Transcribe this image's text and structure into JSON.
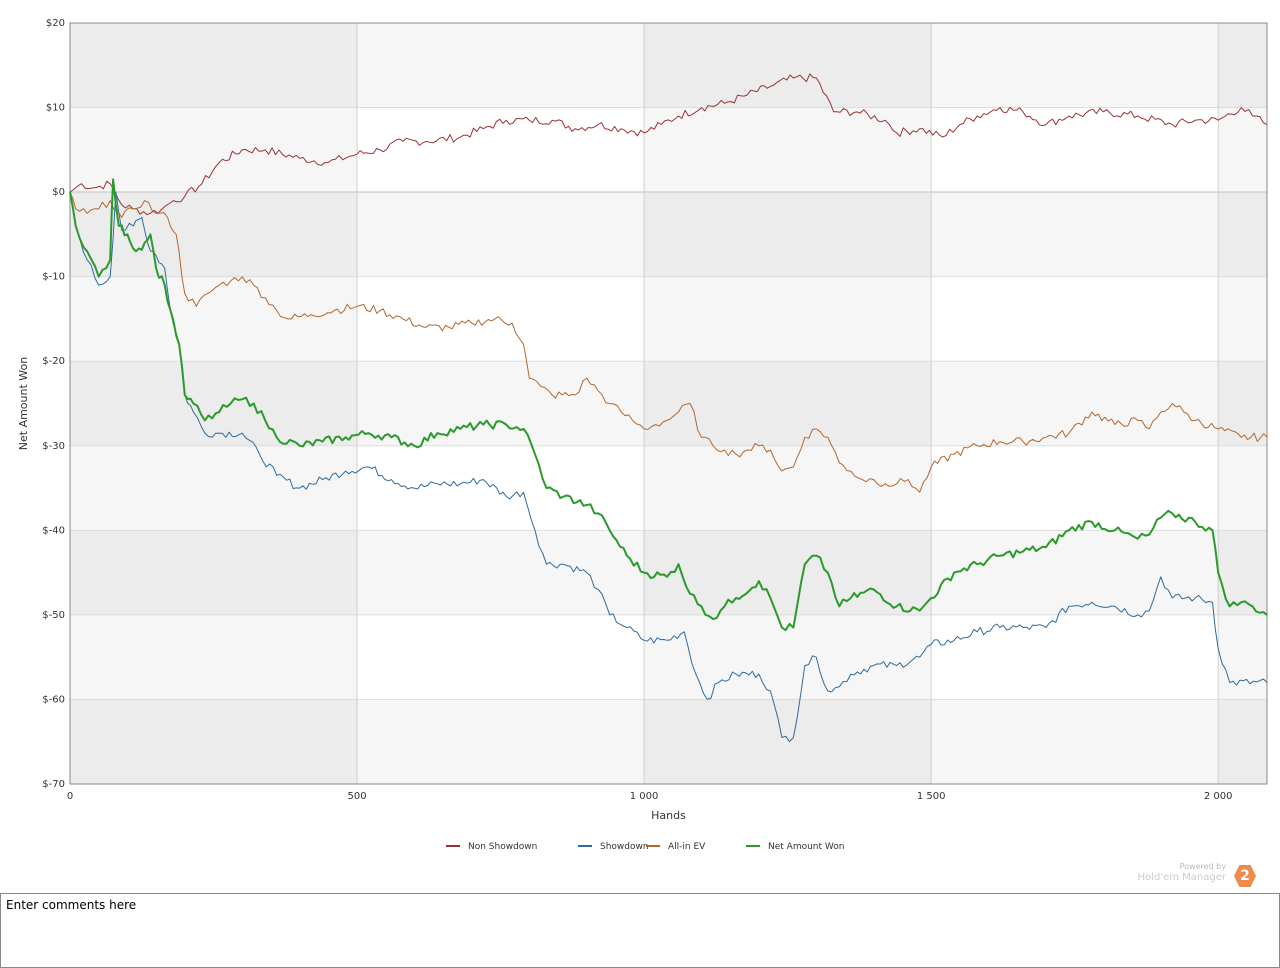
{
  "chart_data": {
    "type": "line",
    "title": "",
    "xlabel": "Hands",
    "ylabel": "Net Amount Won",
    "xlim": [
      0,
      2085
    ],
    "ylim": [
      -70,
      20
    ],
    "x_ticks": [
      0,
      500,
      1000,
      1500,
      2000
    ],
    "x_tick_labels": [
      "0",
      "500",
      "1 000",
      "1 500",
      "2 000"
    ],
    "y_ticks": [
      20,
      10,
      0,
      -10,
      -20,
      -30,
      -40,
      -50,
      -60,
      -70
    ],
    "y_tick_labels": [
      "$20",
      "$10",
      "$0",
      "$-10",
      "$-20",
      "$-30",
      "$-40",
      "$-50",
      "$-60",
      "$-70"
    ],
    "grid": true,
    "legend_position": "bottom-center",
    "series": [
      {
        "name": "Non Showdown",
        "color": "#9b3236",
        "stroke": 1,
        "points": [
          [
            0,
            0
          ],
          [
            20,
            1
          ],
          [
            40,
            0.5
          ],
          [
            70,
            1
          ],
          [
            90,
            -1.5
          ],
          [
            110,
            -2
          ],
          [
            140,
            -2.5
          ],
          [
            160,
            -2
          ],
          [
            180,
            -1
          ],
          [
            200,
            -0.5
          ],
          [
            230,
            1
          ],
          [
            260,
            3.5
          ],
          [
            300,
            5
          ],
          [
            340,
            5
          ],
          [
            400,
            4
          ],
          [
            450,
            3.5
          ],
          [
            500,
            4.5
          ],
          [
            540,
            5
          ],
          [
            580,
            6
          ],
          [
            620,
            6
          ],
          [
            680,
            6.5
          ],
          [
            720,
            7.5
          ],
          [
            760,
            8.5
          ],
          [
            800,
            8.5
          ],
          [
            840,
            8.5
          ],
          [
            880,
            7.5
          ],
          [
            920,
            8
          ],
          [
            960,
            7.5
          ],
          [
            1000,
            7
          ],
          [
            1030,
            8
          ],
          [
            1060,
            9
          ],
          [
            1100,
            10
          ],
          [
            1140,
            10.5
          ],
          [
            1180,
            11.5
          ],
          [
            1220,
            12.5
          ],
          [
            1260,
            13.5
          ],
          [
            1300,
            13.5
          ],
          [
            1330,
            9.5
          ],
          [
            1370,
            9.5
          ],
          [
            1420,
            8.5
          ],
          [
            1440,
            7
          ],
          [
            1480,
            7.5
          ],
          [
            1520,
            6.5
          ],
          [
            1550,
            8
          ],
          [
            1580,
            9
          ],
          [
            1620,
            10
          ],
          [
            1660,
            9.5
          ],
          [
            1700,
            8
          ],
          [
            1740,
            9
          ],
          [
            1800,
            9.5
          ],
          [
            1860,
            9
          ],
          [
            1920,
            8
          ],
          [
            1960,
            8.5
          ],
          [
            2000,
            8.5
          ],
          [
            2040,
            10
          ],
          [
            2060,
            9
          ],
          [
            2085,
            8
          ]
        ]
      },
      {
        "name": "Showdown",
        "color": "#2e6b9e",
        "stroke": 1,
        "points": [
          [
            0,
            0
          ],
          [
            10,
            -4
          ],
          [
            30,
            -8
          ],
          [
            50,
            -11
          ],
          [
            70,
            -10
          ],
          [
            80,
            0
          ],
          [
            90,
            -4.5
          ],
          [
            110,
            -4
          ],
          [
            125,
            -3
          ],
          [
            135,
            -6
          ],
          [
            150,
            -7.5
          ],
          [
            165,
            -9
          ],
          [
            175,
            -14
          ],
          [
            190,
            -18
          ],
          [
            200,
            -24
          ],
          [
            215,
            -26
          ],
          [
            235,
            -28.5
          ],
          [
            260,
            -28.5
          ],
          [
            300,
            -28.5
          ],
          [
            330,
            -31
          ],
          [
            360,
            -33.5
          ],
          [
            400,
            -35
          ],
          [
            440,
            -34
          ],
          [
            480,
            -33
          ],
          [
            520,
            -32.5
          ],
          [
            560,
            -34
          ],
          [
            600,
            -35
          ],
          [
            640,
            -34.5
          ],
          [
            680,
            -34.5
          ],
          [
            720,
            -34
          ],
          [
            760,
            -36
          ],
          [
            790,
            -35.5
          ],
          [
            810,
            -40
          ],
          [
            830,
            -44
          ],
          [
            860,
            -44
          ],
          [
            900,
            -45
          ],
          [
            920,
            -47
          ],
          [
            940,
            -50
          ],
          [
            970,
            -51.5
          ],
          [
            1000,
            -53
          ],
          [
            1040,
            -53
          ],
          [
            1070,
            -52
          ],
          [
            1090,
            -57
          ],
          [
            1110,
            -60
          ],
          [
            1130,
            -58
          ],
          [
            1160,
            -57
          ],
          [
            1200,
            -57
          ],
          [
            1220,
            -59
          ],
          [
            1240,
            -64.5
          ],
          [
            1260,
            -64.5
          ],
          [
            1280,
            -56
          ],
          [
            1300,
            -55
          ],
          [
            1320,
            -59
          ],
          [
            1340,
            -58.5
          ],
          [
            1360,
            -57
          ],
          [
            1400,
            -56
          ],
          [
            1440,
            -56
          ],
          [
            1480,
            -55
          ],
          [
            1500,
            -53.5
          ],
          [
            1540,
            -53
          ],
          [
            1580,
            -52
          ],
          [
            1620,
            -51.5
          ],
          [
            1660,
            -51.5
          ],
          [
            1700,
            -51.5
          ],
          [
            1740,
            -49
          ],
          [
            1780,
            -48.5
          ],
          [
            1820,
            -49
          ],
          [
            1860,
            -50
          ],
          [
            1880,
            -49.5
          ],
          [
            1900,
            -45.5
          ],
          [
            1920,
            -48
          ],
          [
            1960,
            -48
          ],
          [
            1990,
            -48.5
          ],
          [
            2000,
            -54
          ],
          [
            2020,
            -58
          ],
          [
            2085,
            -58
          ]
        ]
      },
      {
        "name": "All-in EV",
        "color": "#b3672d",
        "stroke": 1,
        "points": [
          [
            0,
            0
          ],
          [
            10,
            -2
          ],
          [
            30,
            -2.5
          ],
          [
            50,
            -2
          ],
          [
            70,
            -1
          ],
          [
            90,
            -3
          ],
          [
            110,
            -2
          ],
          [
            130,
            -1
          ],
          [
            150,
            -2.5
          ],
          [
            170,
            -3
          ],
          [
            185,
            -5
          ],
          [
            200,
            -12
          ],
          [
            220,
            -13.5
          ],
          [
            240,
            -12
          ],
          [
            260,
            -11
          ],
          [
            280,
            -10.5
          ],
          [
            300,
            -10
          ],
          [
            320,
            -11
          ],
          [
            340,
            -12.5
          ],
          [
            360,
            -14
          ],
          [
            380,
            -15
          ],
          [
            420,
            -14.5
          ],
          [
            460,
            -14
          ],
          [
            500,
            -13.5
          ],
          [
            540,
            -14
          ],
          [
            580,
            -15
          ],
          [
            620,
            -16
          ],
          [
            660,
            -16
          ],
          [
            700,
            -15.5
          ],
          [
            740,
            -15
          ],
          [
            770,
            -15.5
          ],
          [
            790,
            -18
          ],
          [
            800,
            -22
          ],
          [
            820,
            -23
          ],
          [
            840,
            -24
          ],
          [
            880,
            -24
          ],
          [
            900,
            -22
          ],
          [
            920,
            -23.5
          ],
          [
            940,
            -25
          ],
          [
            960,
            -26
          ],
          [
            980,
            -27
          ],
          [
            1000,
            -28
          ],
          [
            1020,
            -27.5
          ],
          [
            1040,
            -27
          ],
          [
            1060,
            -26
          ],
          [
            1080,
            -25
          ],
          [
            1100,
            -29
          ],
          [
            1120,
            -30
          ],
          [
            1140,
            -30.5
          ],
          [
            1160,
            -31
          ],
          [
            1180,
            -30.5
          ],
          [
            1200,
            -30
          ],
          [
            1220,
            -30.5
          ],
          [
            1240,
            -33
          ],
          [
            1260,
            -32.5
          ],
          [
            1280,
            -29
          ],
          [
            1300,
            -28
          ],
          [
            1320,
            -29
          ],
          [
            1340,
            -32
          ],
          [
            1360,
            -33
          ],
          [
            1380,
            -34
          ],
          [
            1400,
            -34
          ],
          [
            1420,
            -34.5
          ],
          [
            1440,
            -34.5
          ],
          [
            1460,
            -34
          ],
          [
            1480,
            -35.5
          ],
          [
            1500,
            -32.5
          ],
          [
            1540,
            -31
          ],
          [
            1580,
            -30
          ],
          [
            1620,
            -29.5
          ],
          [
            1660,
            -29.5
          ],
          [
            1700,
            -29
          ],
          [
            1740,
            -28.5
          ],
          [
            1780,
            -26
          ],
          [
            1820,
            -27.5
          ],
          [
            1860,
            -27
          ],
          [
            1880,
            -28
          ],
          [
            1900,
            -26
          ],
          [
            1920,
            -25
          ],
          [
            1940,
            -26
          ],
          [
            1960,
            -27
          ],
          [
            2000,
            -28
          ],
          [
            2040,
            -29
          ],
          [
            2085,
            -29
          ]
        ]
      },
      {
        "name": "Net Amount Won",
        "color": "#2a9a2a",
        "stroke": 2,
        "points": [
          [
            0,
            0
          ],
          [
            10,
            -4
          ],
          [
            30,
            -7
          ],
          [
            50,
            -10
          ],
          [
            70,
            -8
          ],
          [
            75,
            1.5
          ],
          [
            85,
            -4
          ],
          [
            100,
            -5
          ],
          [
            115,
            -7
          ],
          [
            130,
            -6
          ],
          [
            140,
            -5
          ],
          [
            150,
            -9
          ],
          [
            165,
            -11
          ],
          [
            175,
            -14
          ],
          [
            190,
            -18
          ],
          [
            200,
            -24
          ],
          [
            215,
            -25
          ],
          [
            235,
            -27
          ],
          [
            260,
            -26
          ],
          [
            280,
            -25
          ],
          [
            300,
            -24.5
          ],
          [
            320,
            -25
          ],
          [
            340,
            -27
          ],
          [
            360,
            -29
          ],
          [
            400,
            -30
          ],
          [
            440,
            -29.5
          ],
          [
            480,
            -29
          ],
          [
            520,
            -28.5
          ],
          [
            560,
            -29
          ],
          [
            600,
            -30
          ],
          [
            640,
            -28.5
          ],
          [
            680,
            -28
          ],
          [
            720,
            -27.5
          ],
          [
            760,
            -27.5
          ],
          [
            790,
            -28
          ],
          [
            810,
            -31
          ],
          [
            830,
            -35
          ],
          [
            860,
            -36
          ],
          [
            900,
            -37
          ],
          [
            920,
            -38
          ],
          [
            940,
            -40
          ],
          [
            970,
            -43
          ],
          [
            1000,
            -45
          ],
          [
            1040,
            -45.5
          ],
          [
            1060,
            -44
          ],
          [
            1080,
            -47.5
          ],
          [
            1100,
            -49
          ],
          [
            1120,
            -50.5
          ],
          [
            1140,
            -49
          ],
          [
            1160,
            -48
          ],
          [
            1200,
            -46
          ],
          [
            1220,
            -48
          ],
          [
            1240,
            -51.5
          ],
          [
            1260,
            -51.5
          ],
          [
            1280,
            -44
          ],
          [
            1300,
            -43
          ],
          [
            1320,
            -45
          ],
          [
            1340,
            -49
          ],
          [
            1360,
            -48
          ],
          [
            1400,
            -47
          ],
          [
            1440,
            -49
          ],
          [
            1480,
            -49.5
          ],
          [
            1500,
            -48
          ],
          [
            1540,
            -45
          ],
          [
            1580,
            -44
          ],
          [
            1620,
            -43
          ],
          [
            1660,
            -42.5
          ],
          [
            1700,
            -42
          ],
          [
            1740,
            -40
          ],
          [
            1780,
            -39
          ],
          [
            1820,
            -40
          ],
          [
            1860,
            -41
          ],
          [
            1880,
            -40.5
          ],
          [
            1900,
            -38.5
          ],
          [
            1920,
            -38
          ],
          [
            1960,
            -39
          ],
          [
            1990,
            -40
          ],
          [
            2000,
            -45
          ],
          [
            2020,
            -49
          ],
          [
            2040,
            -48.5
          ],
          [
            2060,
            -49
          ],
          [
            2085,
            -50
          ]
        ]
      }
    ]
  },
  "branding": {
    "powered_by": "Powered by",
    "product": "Hold'em Manager",
    "logo_text": "2"
  },
  "comments": {
    "placeholder": "Enter comments here"
  }
}
